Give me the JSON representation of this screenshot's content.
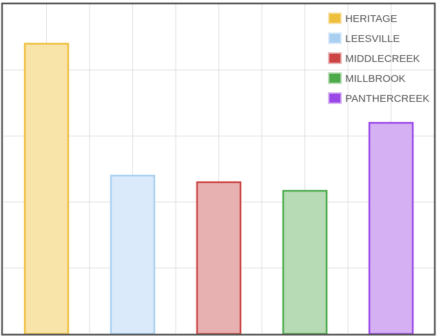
{
  "chart_data": {
    "type": "bar",
    "title": "",
    "xlabel": "",
    "ylabel": "",
    "categories": [
      "HERITAGE",
      "LEESVILLE",
      "MIDDLECREEK",
      "MILLBROOK",
      "PANTHERCREEK"
    ],
    "values": [
      4.4,
      2.4,
      2.3,
      2.17,
      3.2
    ],
    "ylim": [
      0,
      5
    ],
    "grid": true,
    "legend_position": "top-right",
    "colors": {
      "HERITAGE": {
        "fill": "#f8e3a8",
        "stroke": "#eebf3d"
      },
      "LEESVILLE": {
        "fill": "#dbeafb",
        "stroke": "#a9d0f1"
      },
      "MIDDLECREEK": {
        "fill": "#e8b1b1",
        "stroke": "#cc4444"
      },
      "MILLBROOK": {
        "fill": "#b7dbb5",
        "stroke": "#4caa4a"
      },
      "PANTHERCREEK": {
        "fill": "#d5b1f3",
        "stroke": "#9a47e8"
      }
    },
    "legend": [
      "HERITAGE",
      "LEESVILLE",
      "MIDDLECREEK",
      "MILLBROOK",
      "PANTHERCREEK"
    ]
  }
}
